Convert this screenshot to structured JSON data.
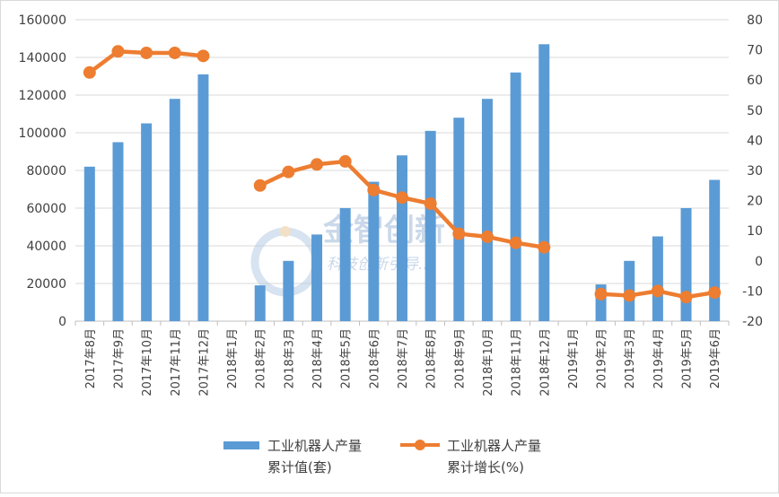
{
  "chart_data": {
    "type": "bar",
    "combo": "bar + line (secondary axis)",
    "categories": [
      "2017年8月",
      "2017年9月",
      "2017年10月",
      "2017年11月",
      "2017年12月",
      "2018年1月",
      "2018年2月",
      "2018年3月",
      "2018年4月",
      "2018年5月",
      "2018年6月",
      "2018年7月",
      "2018年8月",
      "2018年9月",
      "2018年10月",
      "2018年11月",
      "2018年12月",
      "2019年1月",
      "2019年2月",
      "2019年3月",
      "2019年4月",
      "2019年5月",
      "2019年6月"
    ],
    "series": [
      {
        "name": "工业机器人产量累计值(套)",
        "type": "bar",
        "axis": "left",
        "color": "#5B9BD5",
        "values": [
          82000,
          95000,
          105000,
          118000,
          131000,
          null,
          19000,
          32000,
          46000,
          60000,
          74000,
          88000,
          101000,
          108000,
          118000,
          132000,
          147000,
          null,
          19500,
          32000,
          45000,
          60000,
          75000
        ]
      },
      {
        "name": "工业机器人产量累计增长(%)",
        "type": "line",
        "axis": "right",
        "color": "#ED7D31",
        "values": [
          62.5,
          69.5,
          69,
          69,
          68,
          null,
          25,
          29.5,
          32,
          33,
          23.5,
          21,
          19,
          9,
          8,
          6,
          4.5,
          null,
          -11,
          -11.5,
          -10,
          -12,
          -10.5
        ]
      }
    ],
    "y_left": {
      "min": 0,
      "max": 160000,
      "step": 20000,
      "ticks": [
        "0",
        "20000",
        "40000",
        "60000",
        "80000",
        "100000",
        "120000",
        "140000",
        "160000"
      ]
    },
    "y_right": {
      "min": -20,
      "max": 80,
      "step": 10,
      "ticks": [
        "-20",
        "-10",
        "0",
        "10",
        "20",
        "30",
        "40",
        "50",
        "60",
        "70",
        "80"
      ]
    },
    "grid": true,
    "legend": {
      "placement": "bottom",
      "items": [
        {
          "line1": "工业机器人产量",
          "line2": "累计值(套)",
          "kind": "bar",
          "color": "#5B9BD5"
        },
        {
          "line1": "工业机器人产量",
          "line2": "累计增长(%)",
          "kind": "line",
          "color": "#ED7D31"
        }
      ]
    },
    "watermark": {
      "text": "金智创新",
      "subtext": "科技创新引导..."
    }
  }
}
